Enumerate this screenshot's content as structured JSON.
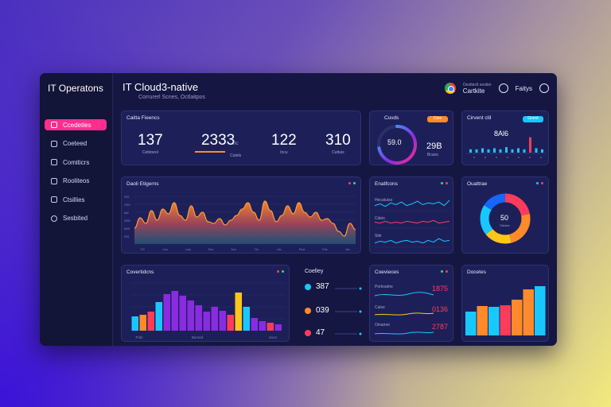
{
  "colors": {
    "accent": "#ff2d8e",
    "cyan": "#19c7ff",
    "orange": "#ff8a2a",
    "purple": "#8a2be2",
    "red": "#ff3b5c",
    "yellow": "#ffc61a",
    "green": "#2ee06a"
  },
  "sidebar": {
    "title": "IT Operatons",
    "items": [
      {
        "label": "Ccedeties",
        "icon": "dashboard-icon",
        "active": true
      },
      {
        "label": "Coeteed",
        "icon": "server-icon"
      },
      {
        "label": "Comiticrs",
        "icon": "monitor-icon"
      },
      {
        "label": "Rooliteos",
        "icon": "network-icon"
      },
      {
        "label": "Ctsillies",
        "icon": "settings-icon"
      },
      {
        "label": "Sesbited",
        "icon": "logout-icon"
      }
    ]
  },
  "header": {
    "title": "IT Cloud3-native",
    "subtitle": "Corrurerl Scnes, Octlaitpos",
    "account_name": "Cartkite",
    "account_sub": "Oestteclt sestier",
    "user": "Faitys"
  },
  "kpi_card": {
    "title": "Caitta Fieencs",
    "items": [
      {
        "value": "137",
        "label": "Cebtoeol"
      },
      {
        "value": "2333",
        "label": "Cutels",
        "unit": "nc"
      },
      {
        "value": "122",
        "label": "Incu"
      },
      {
        "value": "310",
        "label": "Cuttuis"
      }
    ]
  },
  "gauge_card": {
    "title": "Cuvds",
    "badge": "Ctee",
    "gauge_value": "59.0",
    "side_value": "29B",
    "side_label": "Bcans",
    "fraction": 0.72
  },
  "bars_top_card": {
    "title": "Cirvent ctil",
    "badge": "Gneot",
    "value": "8Al6"
  },
  "area_card": {
    "title": "Daoli Etigerns",
    "x_ticks": [
      "7/0",
      "Lac",
      "Laa",
      "Sco",
      "Sco",
      "Ylc",
      "Idc",
      "Fice",
      "Fdc",
      "Iac"
    ],
    "y_ticks": [
      "ISS",
      "IMS",
      "ZED",
      "IaE",
      "ZSS",
      "ISS"
    ]
  },
  "lines_card": {
    "title": "Enatfcons",
    "rows": [
      {
        "label": "Hecatuiso"
      },
      {
        "label": "Cdeis"
      },
      {
        "label": "Siitr"
      }
    ]
  },
  "donut_card": {
    "title": "Ouattrae",
    "center_value": "50",
    "center_label": "Ctedcs"
  },
  "bar_card": {
    "title": "Covertidcns",
    "x_ticks": [
      "Pofs",
      "Bersed",
      "Socs"
    ]
  },
  "stats_card": {
    "title": "Coelley",
    "items": [
      {
        "value": "387",
        "color": "#ff8a2a"
      },
      {
        "value": "039",
        "color": "#ff3b5c"
      },
      {
        "value": "47",
        "color": "#ff8a2a"
      }
    ]
  },
  "list_card": {
    "title": "Coevieces",
    "items": [
      {
        "label": "Porkoatne",
        "value": "1875",
        "color": "#ff3b5c"
      },
      {
        "label": "Calse",
        "value": "0136",
        "color": "#ff3b5c"
      },
      {
        "label": "Oinamer",
        "value": "2787",
        "color": "#ff3b5c"
      }
    ]
  },
  "colbar_card": {
    "title": "Docetes"
  },
  "chart_data": [
    {
      "type": "area",
      "title": "Daoli Etigerns",
      "x": [
        0,
        1,
        2,
        3,
        4,
        5,
        6,
        7,
        8,
        9,
        10,
        11,
        12,
        13,
        14,
        15,
        16,
        17,
        18,
        19,
        20,
        21,
        22,
        23,
        24,
        25,
        26,
        27,
        28,
        29,
        30,
        31,
        32,
        33,
        34,
        35,
        36,
        37,
        38,
        39
      ],
      "values": [
        20,
        33,
        26,
        42,
        30,
        44,
        38,
        52,
        36,
        30,
        48,
        34,
        40,
        28,
        26,
        32,
        24,
        30,
        36,
        44,
        52,
        40,
        30,
        54,
        42,
        28,
        36,
        48,
        38,
        52,
        40,
        34,
        40,
        30,
        32,
        26,
        16,
        10,
        26,
        18
      ],
      "ylim": [
        0,
        60
      ]
    },
    {
      "type": "bar",
      "title": "Covertidcns",
      "values": [
        18,
        20,
        24,
        36,
        46,
        50,
        44,
        38,
        32,
        24,
        30,
        25,
        20,
        48,
        30,
        16,
        12,
        10,
        8
      ],
      "colors": [
        "#19c7ff",
        "#ff8a2a",
        "#ff3b5c",
        "#19c7ff",
        "#8a2be2",
        "#8a2be2",
        "#8a2be2",
        "#8a2be2",
        "#8a2be2",
        "#8a2be2",
        "#8a2be2",
        "#8a2be2",
        "#ff3b5c",
        "#ffc61a",
        "#19c7ff",
        "#8a2be2",
        "#8a2be2",
        "#ff3b5c",
        "#8a2be2"
      ],
      "ylim": [
        0,
        60
      ]
    },
    {
      "type": "bar",
      "title": "Docetes",
      "values": [
        30,
        37,
        36,
        38,
        45,
        58,
        62
      ],
      "colors": [
        "#19c7ff",
        "#ff8a2a",
        "#19c7ff",
        "#ff3b5c",
        "#ff8a2a",
        "#ff8a2a",
        "#19c7ff"
      ],
      "ylim": [
        0,
        70
      ]
    },
    {
      "type": "bar",
      "title": "Cirvent ctil",
      "values": [
        3,
        3,
        4,
        3,
        4,
        3,
        5,
        3,
        4,
        3,
        14,
        4,
        3
      ],
      "ylim": [
        0,
        16
      ]
    },
    {
      "type": "pie",
      "title": "Ouattrae",
      "values": [
        22,
        24,
        18,
        20,
        16
      ],
      "colors": [
        "#ff3b5c",
        "#ff8a2a",
        "#ffc61a",
        "#19c7ff",
        "#1565ff"
      ]
    },
    {
      "type": "line",
      "title": "Enatfcons",
      "series": [
        {
          "values": [
            4,
            6,
            3,
            7,
            5,
            8,
            4,
            6,
            9,
            5,
            7,
            6,
            8,
            4,
            10
          ]
        },
        {
          "values": [
            5,
            4,
            6,
            4,
            5,
            4,
            6,
            5,
            4,
            6,
            5,
            7,
            4,
            5,
            6
          ]
        },
        {
          "values": [
            3,
            5,
            4,
            6,
            3,
            5,
            6,
            4,
            5,
            3,
            6,
            4,
            8,
            5,
            6
          ]
        }
      ]
    }
  ]
}
